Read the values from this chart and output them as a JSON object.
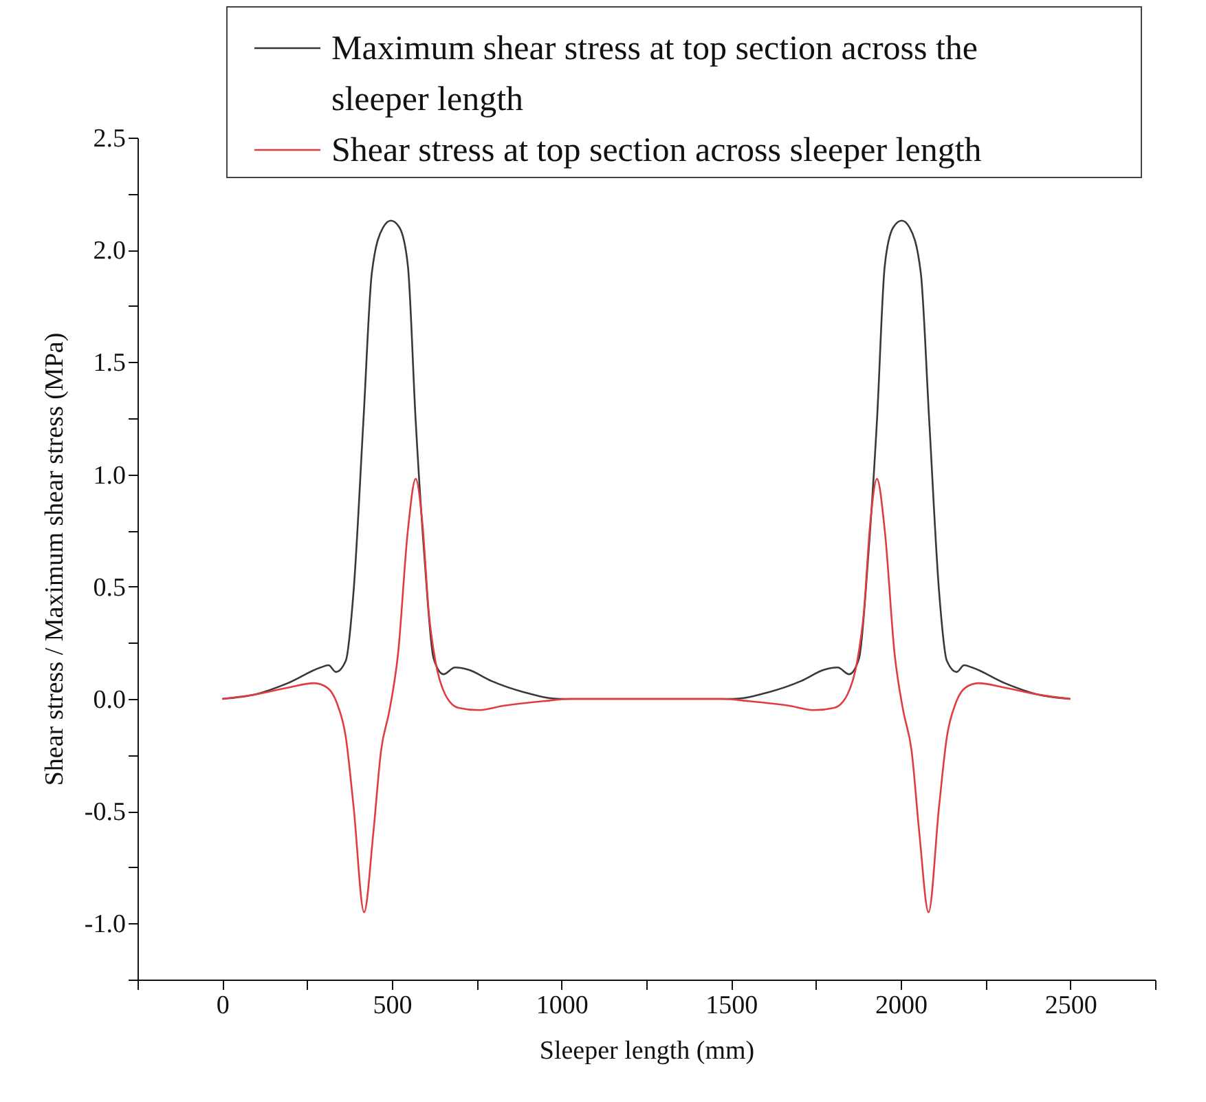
{
  "chart_data": {
    "type": "line",
    "xlabel": "Sleeper length (mm)",
    "ylabel": "Shear stress / Maximum shear stress (MPa)",
    "xlim": [
      -250,
      2750
    ],
    "ylim": [
      -1.25,
      2.5
    ],
    "xticks": [
      {
        "value": -250,
        "label": null
      },
      0,
      {
        "value": 250,
        "label": null
      },
      500,
      {
        "value": 750,
        "label": null
      },
      1000,
      {
        "value": 1250,
        "label": null
      },
      1500,
      {
        "value": 1750,
        "label": null
      },
      2000,
      {
        "value": 2250,
        "label": null
      },
      2500,
      {
        "value": 2750,
        "label": null
      }
    ],
    "yticks": [
      {
        "value": -1.25,
        "label": null
      },
      {
        "value": -1.0,
        "label": "-1.0"
      },
      {
        "value": -0.75,
        "label": null
      },
      -0.5,
      {
        "value": -0.25,
        "label": null
      },
      {
        "value": 0,
        "label": "0.0"
      },
      {
        "value": 0.25,
        "label": null
      },
      0.5,
      {
        "value": 0.75,
        "label": null
      },
      {
        "value": 1.0,
        "label": "1.0"
      },
      {
        "value": 1.25,
        "label": null
      },
      1.5,
      {
        "value": 1.75,
        "label": null
      },
      {
        "value": 2.0,
        "label": "2.0"
      },
      {
        "value": 2.25,
        "label": null
      },
      2.5
    ],
    "grid": false,
    "legend": "top",
    "marker": "none",
    "line_style": "solid",
    "series": [
      {
        "name": "Maximum shear stress at top section across the sleeper length",
        "color": "#383838",
        "x": [
          0,
          97,
          193,
          290,
          313,
          335,
          364,
          387,
          416,
          441,
          474,
          497,
          522,
          547,
          570,
          596,
          623,
          652,
          686,
          725,
          793,
          889,
          996,
          1250,
          1504,
          1611,
          1707,
          1775,
          1814,
          1848,
          1877,
          1904,
          1930,
          1953,
          1978,
          2003,
          2026,
          2059,
          2084,
          2113,
          2136,
          2165,
          2187,
          2210,
          2307,
          2403,
          2500
        ],
        "values": [
          0,
          0.02,
          0.07,
          0.14,
          0.15,
          0.12,
          0.17,
          0.48,
          1.24,
          1.9,
          2.1,
          2.13,
          2.1,
          1.93,
          1.24,
          0.63,
          0.18,
          0.11,
          0.14,
          0.13,
          0.08,
          0.03,
          0,
          0,
          0,
          0.03,
          0.08,
          0.13,
          0.14,
          0.11,
          0.18,
          0.63,
          1.24,
          1.93,
          2.1,
          2.13,
          2.1,
          1.9,
          1.24,
          0.48,
          0.17,
          0.12,
          0.15,
          0.14,
          0.07,
          0.02,
          0
        ]
      },
      {
        "name": "Shear stress at top section across sleeper length",
        "color": "#e03c44",
        "x": [
          0,
          97,
          193,
          271,
          309,
          338,
          364,
          387,
          418,
          445,
          468,
          493,
          518,
          547,
          570,
          590,
          609,
          628,
          657,
          696,
          754,
          831,
          947,
          1025,
          1250,
          1475,
          1553,
          1669,
          1746,
          1804,
          1843,
          1872,
          1891,
          1910,
          1930,
          1953,
          1982,
          2007,
          2032,
          2055,
          2082,
          2113,
          2136,
          2162,
          2191,
          2229,
          2307,
          2403,
          2500
        ],
        "values": [
          0,
          0.02,
          0.05,
          0.07,
          0.05,
          -0.02,
          -0.17,
          -0.48,
          -0.95,
          -0.6,
          -0.23,
          -0.05,
          0.2,
          0.75,
          0.98,
          0.78,
          0.38,
          0.17,
          0.02,
          -0.04,
          -0.05,
          -0.03,
          -0.01,
          0,
          0,
          0,
          -0.01,
          -0.03,
          -0.05,
          -0.04,
          0.02,
          0.17,
          0.38,
          0.78,
          0.98,
          0.75,
          0.2,
          -0.05,
          -0.23,
          -0.6,
          -0.95,
          -0.48,
          -0.17,
          -0.02,
          0.05,
          0.07,
          0.05,
          0.02,
          0
        ]
      }
    ]
  }
}
